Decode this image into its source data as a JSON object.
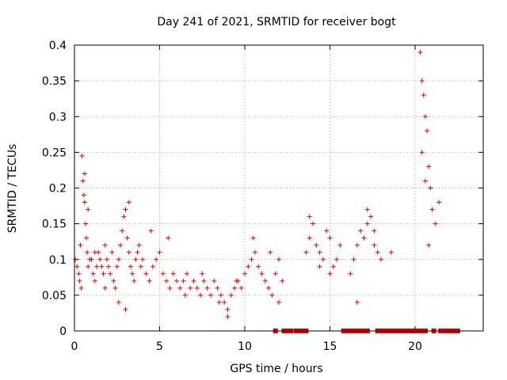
{
  "chart_data": {
    "type": "scatter",
    "title": "Day 241 of 2021, SRMTID for receiver bogt",
    "xlabel": "GPS time / hours",
    "ylabel": "SRMTID / TECUs",
    "xlim": [
      0,
      24
    ],
    "ylim": [
      0,
      0.4
    ],
    "xticks": [
      0,
      5,
      10,
      15,
      20
    ],
    "xtick_labels": [
      "0",
      "5",
      "10",
      "15",
      "20"
    ],
    "yticks": [
      0,
      0.05,
      0.1,
      0.15,
      0.2,
      0.25,
      0.3,
      0.35,
      0.4
    ],
    "ytick_labels": [
      "0",
      "0.05",
      "0.1",
      "0.15",
      "0.2",
      "0.25",
      "0.3",
      "0.35",
      "0.4"
    ],
    "grid": true,
    "marker": "+",
    "color": "#dd0000",
    "series": [
      {
        "name": "SRMTID",
        "x": [
          0.05,
          0.15,
          0.25,
          0.35,
          0.45,
          0.5,
          0.55,
          0.6,
          0.65,
          0.7,
          0.75,
          0.8,
          0.9,
          1.0,
          1.1,
          1.2,
          1.3,
          1.4,
          1.5,
          1.6,
          1.7,
          1.8,
          1.9,
          2.0,
          2.1,
          2.2,
          2.3,
          2.4,
          2.5,
          2.6,
          2.7,
          2.8,
          2.9,
          3.0,
          3.1,
          3.2,
          3.3,
          3.4,
          3.5,
          3.6,
          3.7,
          3.8,
          3.9,
          4.0,
          4.2,
          4.4,
          4.6,
          4.8,
          5.0,
          5.2,
          5.4,
          5.6,
          5.8,
          6.0,
          6.2,
          6.4,
          6.6,
          6.8,
          7.0,
          7.2,
          7.4,
          7.6,
          7.8,
          8.0,
          8.2,
          8.4,
          8.6,
          8.8,
          9.0,
          9.2,
          9.4,
          9.6,
          9.8,
          10.0,
          10.2,
          10.4,
          10.6,
          10.8,
          11.0,
          11.2,
          11.4,
          11.6,
          11.8,
          12.0,
          12.2,
          13.6,
          13.8,
          14.0,
          14.2,
          14.4,
          14.6,
          14.8,
          15.0,
          15.2,
          15.4,
          15.6,
          16.2,
          16.4,
          16.6,
          16.8,
          17.0,
          17.2,
          17.4,
          17.6,
          17.8,
          18.0,
          18.6,
          20.3,
          20.4,
          20.5,
          20.6,
          20.7,
          20.8,
          20.9,
          21.0,
          21.2,
          21.4,
          0.3,
          0.4,
          0.6,
          0.8,
          1.2,
          1.8,
          2.6,
          3.0,
          3.2,
          4.5,
          5.5,
          6.5,
          7.5,
          8.5,
          9.0,
          9.5,
          10.5,
          11.5,
          12.0,
          13.8,
          14.4,
          15.0,
          16.6,
          17.2,
          17.6,
          20.4,
          20.6,
          20.8
        ],
        "y": [
          0.1,
          0.09,
          0.08,
          0.12,
          0.245,
          0.21,
          0.19,
          0.18,
          0.15,
          0.13,
          0.11,
          0.09,
          0.1,
          0.1,
          0.08,
          0.07,
          0.09,
          0.11,
          0.1,
          0.09,
          0.08,
          0.12,
          0.1,
          0.09,
          0.08,
          0.11,
          0.07,
          0.06,
          0.09,
          0.1,
          0.12,
          0.14,
          0.16,
          0.17,
          0.13,
          0.11,
          0.09,
          0.08,
          0.07,
          0.1,
          0.11,
          0.12,
          0.09,
          0.1,
          0.08,
          0.07,
          0.09,
          0.1,
          0.11,
          0.08,
          0.07,
          0.06,
          0.08,
          0.07,
          0.06,
          0.07,
          0.08,
          0.06,
          0.07,
          0.06,
          0.05,
          0.07,
          0.06,
          0.05,
          0.07,
          0.06,
          0.05,
          0.04,
          0.03,
          0.05,
          0.06,
          0.07,
          0.06,
          0.08,
          0.09,
          0.1,
          0.11,
          0.09,
          0.08,
          0.07,
          0.06,
          0.05,
          0.08,
          0.1,
          0.07,
          0.11,
          0.13,
          0.15,
          0.12,
          0.11,
          0.1,
          0.14,
          0.13,
          0.09,
          0.1,
          0.12,
          0.08,
          0.1,
          0.12,
          0.14,
          0.13,
          0.15,
          0.16,
          0.12,
          0.11,
          0.1,
          0.11,
          0.39,
          0.35,
          0.33,
          0.3,
          0.28,
          0.23,
          0.2,
          0.17,
          0.15,
          0.18,
          0.07,
          0.06,
          0.22,
          0.17,
          0.11,
          0.06,
          0.04,
          0.03,
          0.18,
          0.14,
          0.13,
          0.05,
          0.08,
          0.04,
          0.02,
          0.07,
          0.13,
          0.11,
          0.04,
          0.16,
          0.09,
          0.08,
          0.04,
          0.17,
          0.14,
          0.25,
          0.21,
          0.12
        ],
        "flagged_zero_hours": [
          11.8,
          12.3,
          12.4,
          12.5,
          12.6,
          12.7,
          13.0,
          13.2,
          13.4,
          13.6,
          15.8,
          16.0,
          16.2,
          16.4,
          16.6,
          16.8,
          17.0,
          17.2,
          17.8,
          18.0,
          18.2,
          18.4,
          18.6,
          18.8,
          19.0,
          19.2,
          19.4,
          19.6,
          19.8,
          20.0,
          20.2,
          20.4,
          20.6,
          21.1,
          21.5,
          21.7,
          21.9,
          22.1,
          22.3,
          22.5
        ]
      }
    ]
  }
}
